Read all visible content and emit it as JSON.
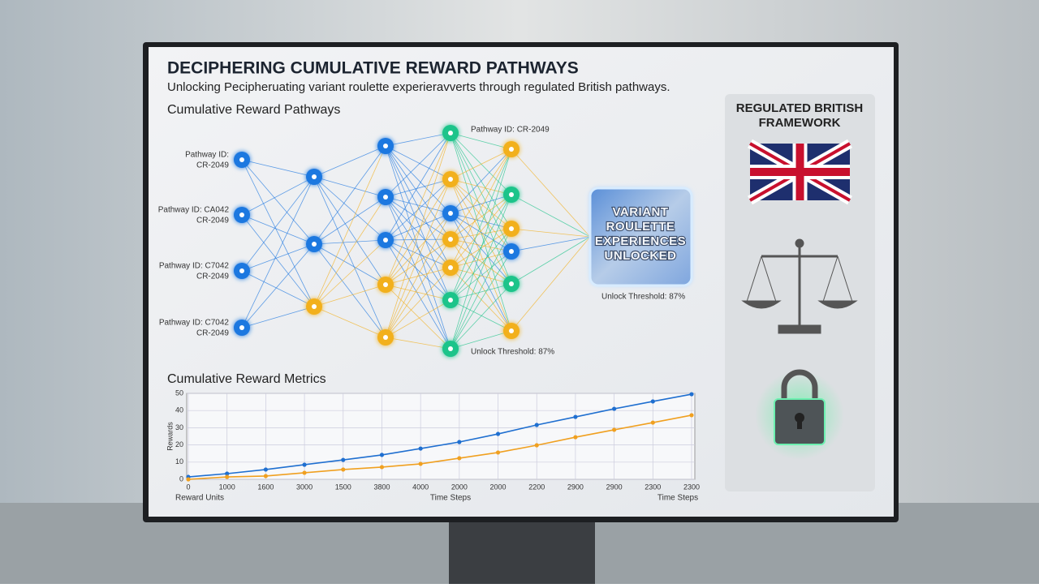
{
  "header": {
    "title": "DECIPHERING CUMULATIVE REWARD PATHWAYS",
    "subtitle": "Unlocking Pecipheruating variant roulette experieravverts through regulated British pathways."
  },
  "network": {
    "title": "Cumulative Reward Pathways",
    "labels": [
      [
        "Pathway ID:",
        "CR-2049"
      ],
      [
        "Pathway ID: CA042",
        "CR-2049"
      ],
      [
        "Pathway ID: C7042",
        "CR-2049"
      ],
      [
        "Pathway ID: C7042",
        "CR-2049"
      ]
    ],
    "top_label": "Pathway ID: CR-2049",
    "thresholds": [
      "Unlock Threshold: 87%",
      "Unlock Threshold: 87%"
    ],
    "unlock_box": [
      "VARIANT",
      "ROULETTE",
      "EXPERIENCES",
      "UNLOCKED"
    ]
  },
  "chart_data": {
    "type": "line",
    "title": "Cumulative Reward Metrics",
    "categories": [
      "0",
      "1000",
      "1600",
      "3000",
      "1500",
      "3800",
      "4000",
      "2000",
      "2000",
      "2200",
      "2900",
      "2900",
      "2300",
      "2300"
    ],
    "series": [
      {
        "color": "#1f6fd0",
        "values": [
          1.4,
          3.3,
          5.7,
          8.5,
          11.3,
          14.2,
          17.9,
          21.7,
          26.4,
          31.6,
          36.3,
          41,
          45.3,
          49.5
        ]
      },
      {
        "color": "#f0a020",
        "values": [
          0,
          1.4,
          1.9,
          3.8,
          5.7,
          7.1,
          9,
          12.3,
          15.6,
          19.8,
          24.5,
          28.8,
          33,
          37.3
        ]
      }
    ],
    "ylim": [
      0,
      50
    ],
    "yticks": [
      0,
      10,
      20,
      30,
      40,
      50
    ],
    "y_label": "Rewards",
    "x_labels": [
      "Reward Units",
      "Time Steps",
      "Time Steps"
    ],
    "grid": true
  },
  "panel": {
    "title": [
      "REGULATED BRITISH",
      "FRAMEWORK"
    ]
  }
}
